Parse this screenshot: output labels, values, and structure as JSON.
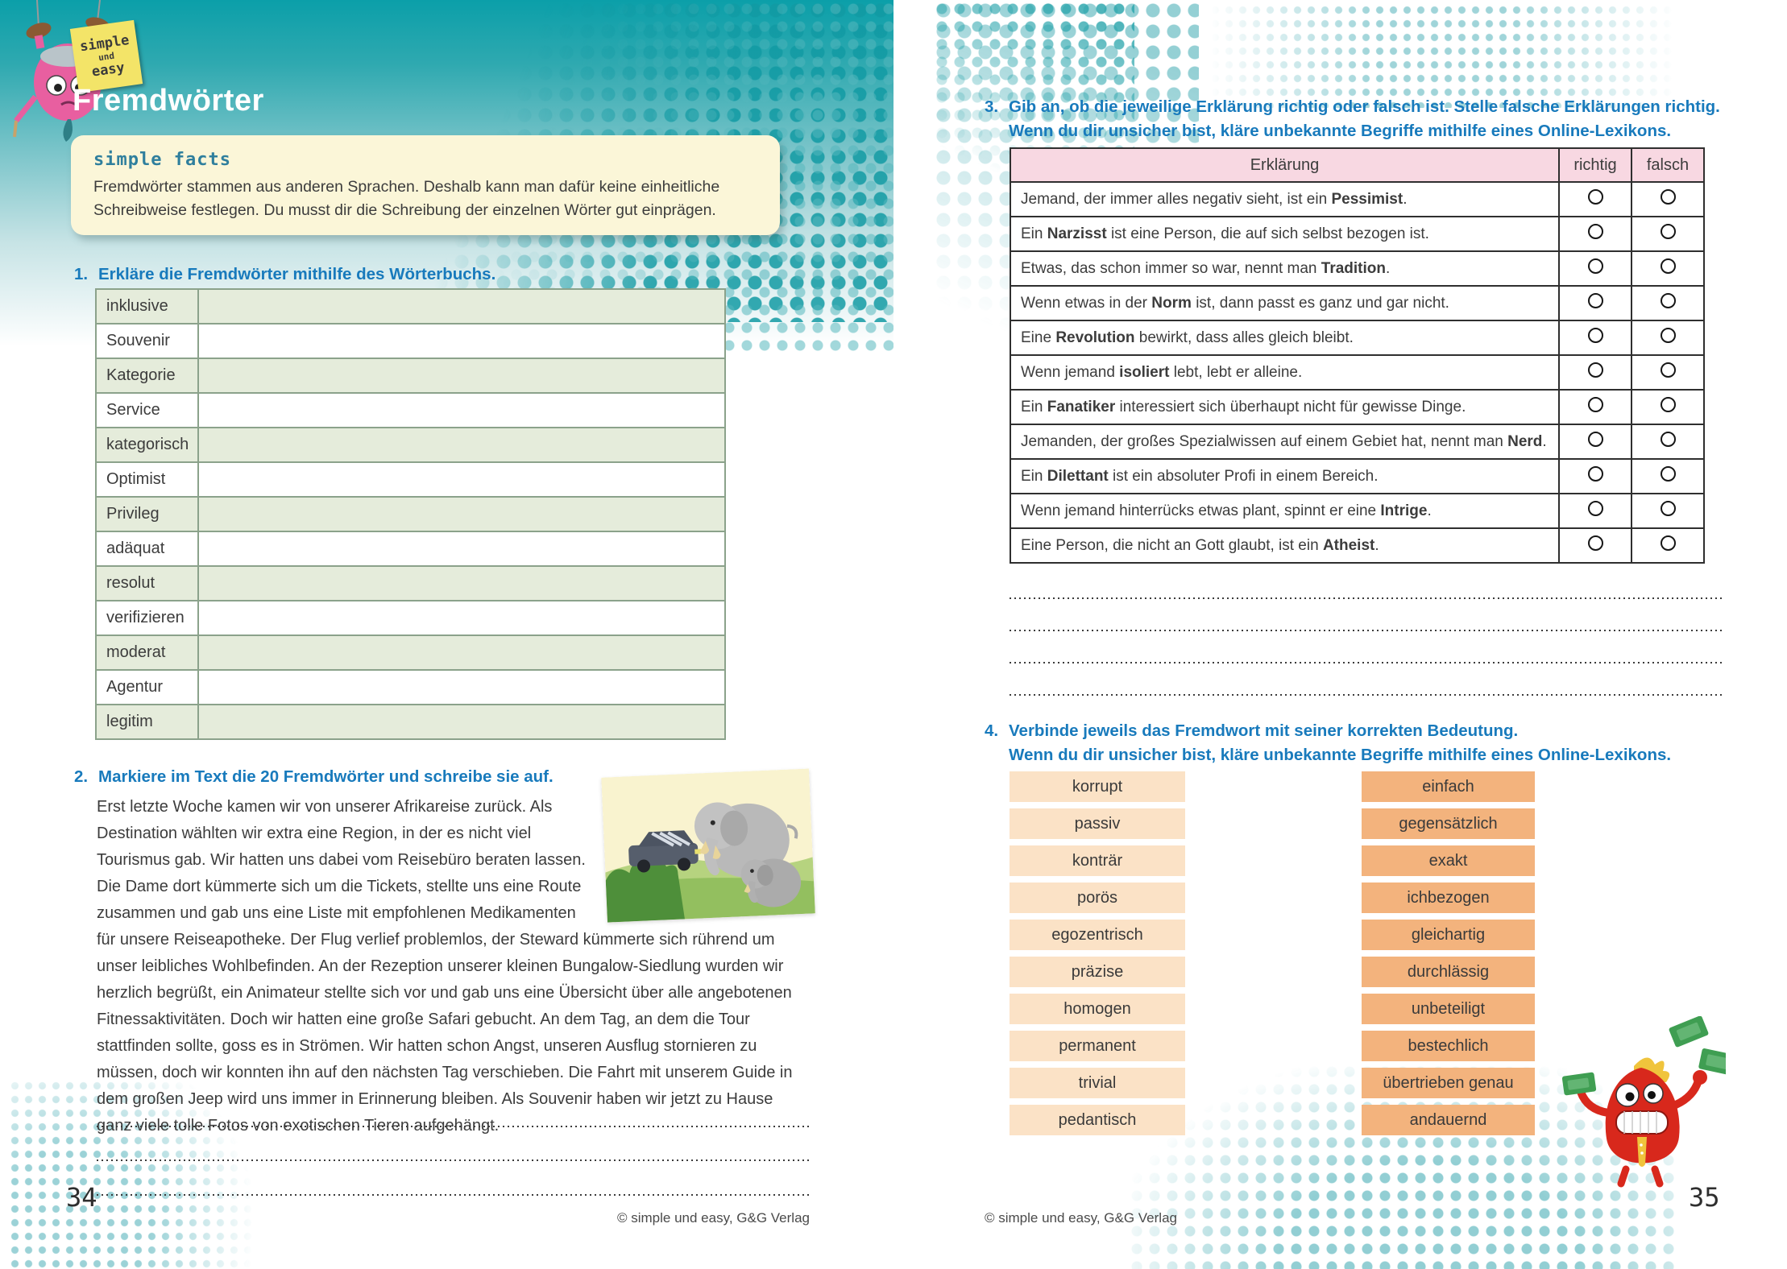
{
  "brand": {
    "note_line1": "simple",
    "note_line2": "und",
    "note_line3": "easy"
  },
  "colors": {
    "accent_blue": "#187abc",
    "header_teal": "#0b9fa9",
    "facts_bg": "#fbf6d8",
    "table1_fill": "#e5ecdb",
    "table3_header_pink": "#f8d8e2",
    "match_box_left": "#fbe2c6",
    "match_box_right": "#f3b37d"
  },
  "page_left": {
    "page_number": "34",
    "copyright": "© simple und easy, G&G Verlag",
    "title": "Fremdwörter",
    "facts": {
      "heading": "simple facts",
      "body": "Fremdwörter stammen aus anderen Sprachen. Deshalb kann man dafür keine einheitliche Schreibweise festlegen. Du musst dir die Schreibung der einzelnen Wörter gut einprägen."
    },
    "exercise1": {
      "number": "1.",
      "title": "Erkläre die Fremdwörter mithilfe des Wörterbuchs.",
      "words": [
        "inklusive",
        "Souvenir",
        "Kategorie",
        "Service",
        "kategorisch",
        "Optimist",
        "Privileg",
        "adäquat",
        "resolut",
        "verifizieren",
        "moderat",
        "Agentur",
        "legitim"
      ]
    },
    "exercise2": {
      "number": "2.",
      "title": "Markiere im Text die 20 Fremdwörter und schreibe sie auf.",
      "text": "Erst letzte Woche kamen wir von unserer Afrikareise zurück. Als Destination wählten wir extra eine Region, in der es nicht viel Tourismus gab. Wir hatten uns dabei vom Reisebüro beraten lassen. Die Dame dort kümmerte sich um die Tickets, stellte uns eine Route zusammen und gab uns eine Liste mit empfohlenen Medikamenten für unsere Reiseapotheke. Der Flug verlief problemlos, der Steward kümmerte sich rührend um unser leibliches Wohlbefinden. An der Rezeption unserer kleinen Bungalow-Siedlung wurden wir herzlich begrüßt, ein Animateur stellte sich vor und gab uns eine Übersicht über alle angebotenen Fitnessaktivitäten. Doch wir hatten eine große Safari gebucht. An dem Tag, an dem die Tour stattfinden sollte, goss es in Strömen. Wir hatten schon Angst, unseren Ausflug stornieren zu müssen, doch wir konnten ihn auf den nächsten Tag verschieben. Die Fahrt mit unserem Guide in dem großen Jeep wird uns immer in Erinnerung bleiben. Als Souvenir haben wir jetzt zu Hause ganz viele tolle Fotos von exotischen Tieren aufgehängt."
    }
  },
  "page_right": {
    "page_number": "35",
    "copyright": "© simple und easy, G&G Verlag",
    "exercise3": {
      "number": "3.",
      "title_line1": "Gib an, ob die jeweilige Erklärung richtig oder falsch ist. Stelle falsche Erklärungen richtig.",
      "title_line2": "Wenn du dir unsicher bist, kläre unbekannte Begriffe mithilfe eines Online-Lexikons.",
      "headers": [
        "Erklärung",
        "richtig",
        "falsch"
      ],
      "rows": [
        [
          {
            "t": "Jemand, der immer alles negativ sieht, ist ein "
          },
          {
            "t": "Pessimist",
            "b": 1
          },
          {
            "t": "."
          }
        ],
        [
          {
            "t": "Ein "
          },
          {
            "t": "Narzisst",
            "b": 1
          },
          {
            "t": " ist eine Person, die auf sich selbst bezogen ist."
          }
        ],
        [
          {
            "t": "Etwas, das schon immer so war, nennt man "
          },
          {
            "t": "Tradition",
            "b": 1
          },
          {
            "t": "."
          }
        ],
        [
          {
            "t": "Wenn etwas in der "
          },
          {
            "t": "Norm",
            "b": 1
          },
          {
            "t": " ist, dann passt es ganz und gar nicht."
          }
        ],
        [
          {
            "t": "Eine "
          },
          {
            "t": "Revolution",
            "b": 1
          },
          {
            "t": " bewirkt, dass alles gleich bleibt."
          }
        ],
        [
          {
            "t": "Wenn jemand "
          },
          {
            "t": "isoliert",
            "b": 1
          },
          {
            "t": " lebt, lebt er alleine."
          }
        ],
        [
          {
            "t": "Ein "
          },
          {
            "t": "Fanatiker",
            "b": 1
          },
          {
            "t": " interessiert sich überhaupt nicht für gewisse Dinge."
          }
        ],
        [
          {
            "t": "Jemanden, der großes Spezialwissen auf einem Gebiet hat, nennt man "
          },
          {
            "t": "Nerd",
            "b": 1
          },
          {
            "t": "."
          }
        ],
        [
          {
            "t": "Ein "
          },
          {
            "t": "Dilettant",
            "b": 1
          },
          {
            "t": " ist ein absoluter Profi in einem Bereich."
          }
        ],
        [
          {
            "t": "Wenn jemand hinterrücks etwas plant, spinnt er eine "
          },
          {
            "t": "Intrige",
            "b": 1
          },
          {
            "t": "."
          }
        ],
        [
          {
            "t": "Eine Person, die nicht an Gott glaubt, ist ein "
          },
          {
            "t": "Atheist",
            "b": 1
          },
          {
            "t": "."
          }
        ]
      ]
    },
    "exercise4": {
      "number": "4.",
      "title_line1": "Verbinde jeweils das Fremdwort mit seiner korrekten Bedeutung.",
      "title_line2": "Wenn du dir unsicher bist, kläre unbekannte Begriffe mithilfe eines Online-Lexikons.",
      "left_words": [
        "korrupt",
        "passiv",
        "konträr",
        "porös",
        "egozentrisch",
        "präzise",
        "homogen",
        "permanent",
        "trivial",
        "pedantisch"
      ],
      "right_words": [
        "einfach",
        "gegensätzlich",
        "exakt",
        "ichbezogen",
        "gleichartig",
        "durchlässig",
        "unbeteiligt",
        "bestechlich",
        "übertrieben genau",
        "andauernd"
      ]
    }
  }
}
